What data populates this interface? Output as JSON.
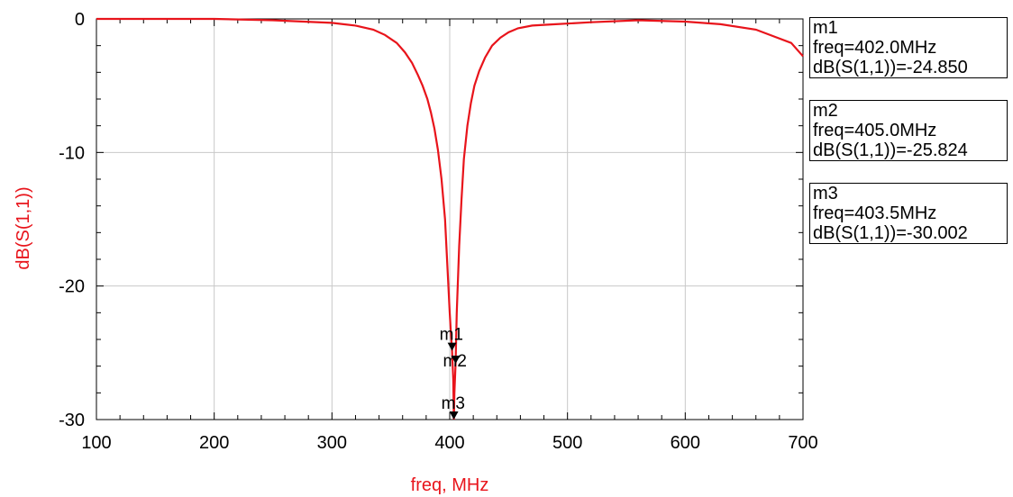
{
  "chart_data": {
    "type": "line",
    "xlabel": "freq, MHz",
    "ylabel": "dB(S(1,1))",
    "xlim": [
      100,
      700
    ],
    "ylim": [
      -30,
      0
    ],
    "x_ticks": [
      "100",
      "200",
      "300",
      "400",
      "500",
      "600",
      "700"
    ],
    "y_ticks": [
      "0",
      "-10",
      "-20",
      "-30"
    ],
    "grid": true,
    "series": [
      {
        "color": "#e8141b",
        "x": [
          100,
          200,
          250,
          300,
          320,
          335,
          345,
          355,
          362,
          368,
          373,
          377,
          381,
          384,
          387,
          390,
          393,
          396,
          398,
          400,
          401,
          402,
          403,
          403.5,
          404,
          405,
          406,
          408,
          410,
          412,
          415,
          418,
          421,
          425,
          430,
          436,
          443,
          450,
          458,
          470,
          490,
          520,
          560,
          600,
          630,
          660,
          690,
          700
        ],
        "y": [
          0,
          0,
          -0.1,
          -0.3,
          -0.5,
          -0.8,
          -1.2,
          -1.8,
          -2.5,
          -3.3,
          -4.2,
          -5.0,
          -6.0,
          -7.0,
          -8.2,
          -9.8,
          -12.0,
          -15.0,
          -18.5,
          -22.0,
          -23.5,
          -24.85,
          -27.0,
          -30.0,
          -28.0,
          -25.824,
          -22.0,
          -17.0,
          -13.5,
          -10.5,
          -8.0,
          -6.3,
          -5.0,
          -3.9,
          -2.9,
          -2.0,
          -1.4,
          -1.0,
          -0.7,
          -0.5,
          -0.4,
          -0.25,
          -0.1,
          -0.2,
          -0.4,
          -0.8,
          -1.8,
          -2.8
        ]
      }
    ],
    "markers": [
      {
        "label": "m1",
        "x": 402.0,
        "y": -24.85
      },
      {
        "label": "m2",
        "x": 405.0,
        "y": -25.824
      },
      {
        "label": "m3",
        "x": 403.5,
        "y": -30.002
      }
    ]
  },
  "marker_boxes": [
    {
      "name": "m1",
      "freq": "freq=402.0MHz",
      "value": "dB(S(1,1))=-24.850"
    },
    {
      "name": "m2",
      "freq": "freq=405.0MHz",
      "value": "dB(S(1,1))=-25.824"
    },
    {
      "name": "m3",
      "freq": "freq=403.5MHz",
      "value": "dB(S(1,1))=-30.002"
    }
  ]
}
